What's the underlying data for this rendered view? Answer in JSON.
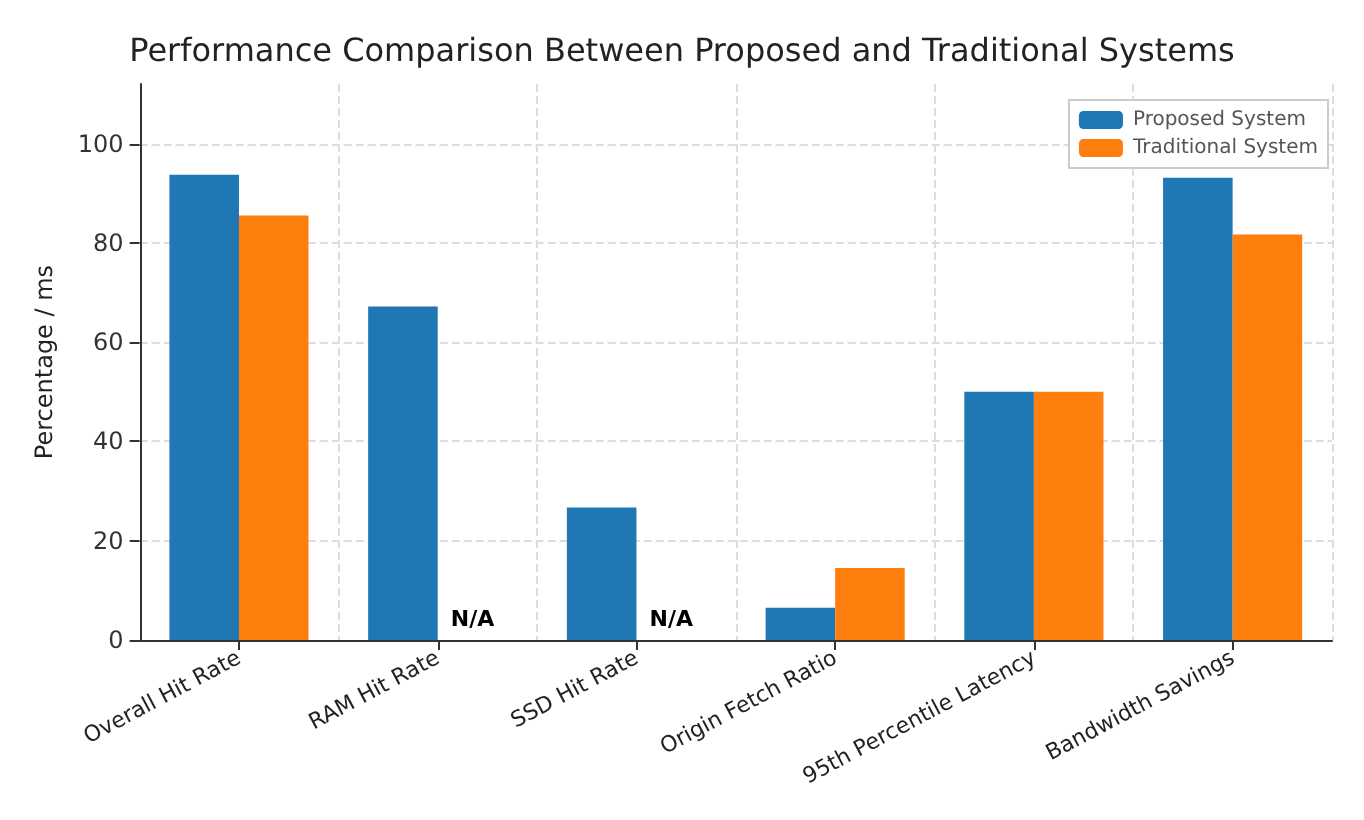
{
  "chart_data": {
    "type": "bar",
    "title": "Performance Comparison Between Proposed and Traditional Systems",
    "ylabel": "Percentage / ms",
    "categories": [
      "Overall Hit Rate",
      "RAM Hit Rate",
      "SSD Hit Rate",
      "Origin Fetch Ratio",
      "95th Percentile Latency",
      "Bandwidth Savings"
    ],
    "series": [
      {
        "name": "Proposed System",
        "color": "#1f77b4",
        "values": [
          93.7,
          67.2,
          26.7,
          6.5,
          50,
          93.1
        ]
      },
      {
        "name": "Traditional System",
        "color": "#ff7f0e",
        "values": [
          85.5,
          null,
          null,
          14.5,
          50,
          81.7
        ]
      }
    ],
    "annotations": [
      {
        "text": "N/A",
        "x": "RAM Hit Rate",
        "y": 0
      },
      {
        "text": "N/A",
        "x": "SSD Hit Rate",
        "y": 0
      }
    ],
    "ylim": [
      0,
      112
    ],
    "yticks": [
      0,
      20,
      40,
      60,
      80,
      100
    ],
    "grid": true,
    "legend": "top right"
  }
}
